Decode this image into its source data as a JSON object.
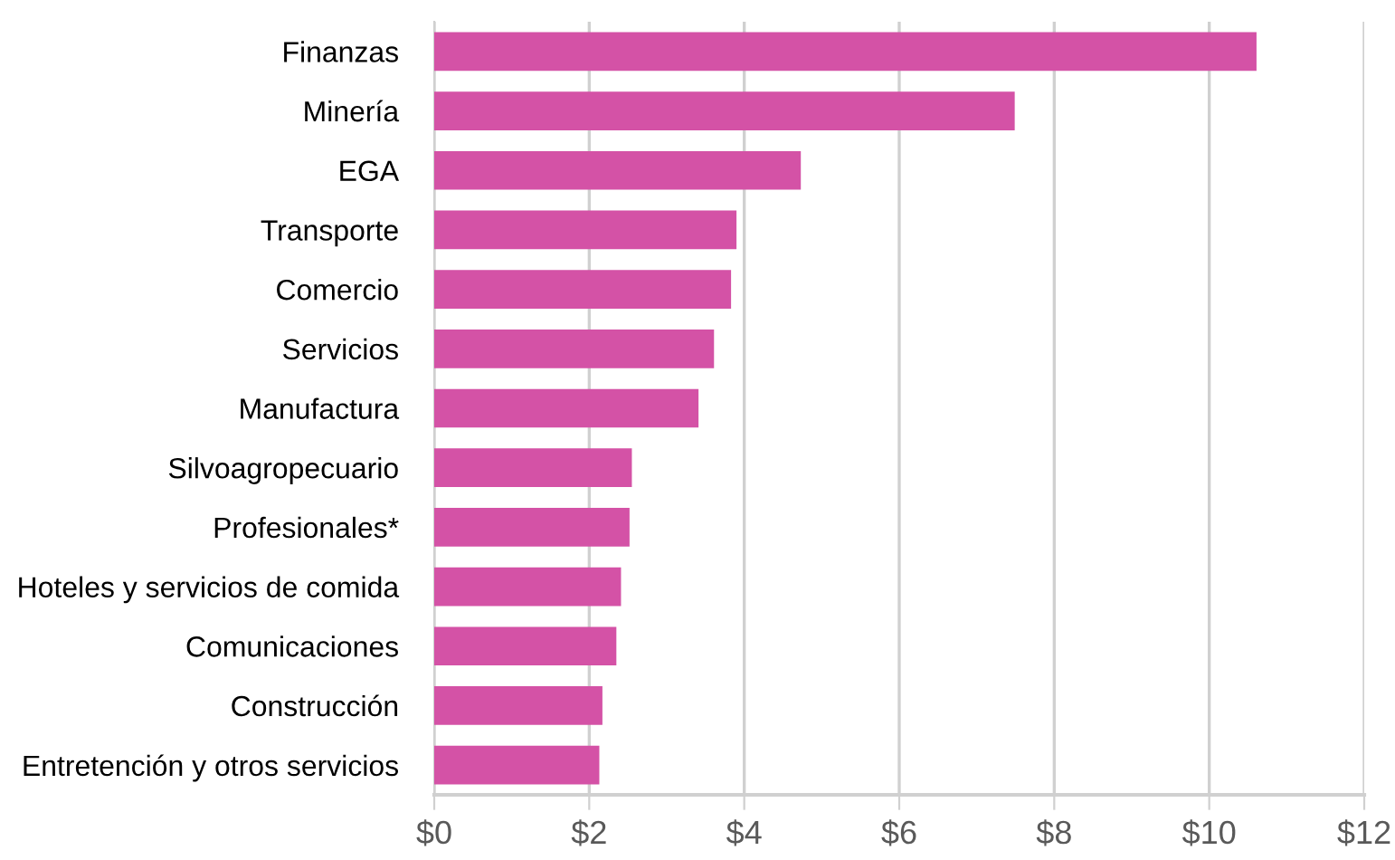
{
  "chart_data": {
    "type": "bar",
    "orientation": "horizontal",
    "categories": [
      "Finanzas",
      "Minería",
      "EGA",
      "Transporte",
      "Comercio",
      "Servicios",
      "Manufactura",
      "Silvoagropecuario",
      "Profesionales*",
      "Hoteles y servicios de comida",
      "Comunicaciones",
      "Construcción",
      "Entretención y otros servicios"
    ],
    "values": [
      10.61,
      7.49,
      4.73,
      3.9,
      3.83,
      3.61,
      3.41,
      2.55,
      2.52,
      2.41,
      2.35,
      2.17,
      2.13
    ],
    "color": "#d452a6",
    "xlim": [
      0,
      12
    ],
    "xticks": [
      {
        "value": 0,
        "label": "$0"
      },
      {
        "value": 2,
        "label": "$2"
      },
      {
        "value": 4,
        "label": "$4"
      },
      {
        "value": 6,
        "label": "$6"
      },
      {
        "value": 8,
        "label": "$8"
      },
      {
        "value": 10,
        "label": "$10"
      },
      {
        "value": 12,
        "label": "$12"
      }
    ],
    "grid": "x"
  }
}
